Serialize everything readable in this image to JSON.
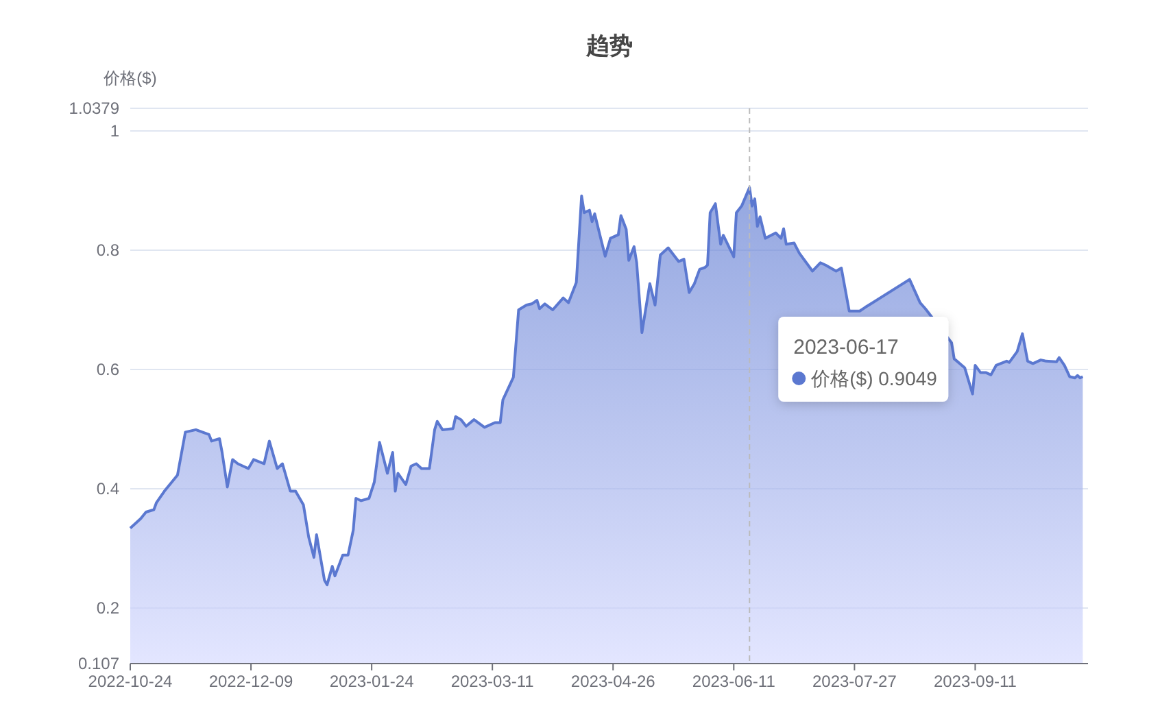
{
  "chart_data": {
    "type": "area",
    "title": "趋势",
    "ylabel": "价格($)",
    "color": "#5b78d0",
    "grid": "y",
    "xlim": [
      "2022-10-24",
      "2023-10-24"
    ],
    "ylim": [
      0.107,
      1.0379
    ],
    "xticks": [
      "2022-10-24",
      "2022-12-09",
      "2023-01-24",
      "2023-03-11",
      "2023-04-26",
      "2023-06-11",
      "2023-07-27",
      "2023-09-11"
    ],
    "yticks": [
      0.107,
      0.2,
      0.4,
      0.6,
      0.8,
      1,
      1.0379
    ],
    "ref_lines": [
      {
        "axis": "x",
        "value": "2023-06-17",
        "line_style": "dashed",
        "color": "#bbbbbb"
      }
    ],
    "annotations": [
      "2023-06-17\n价格($) 0.9049"
    ],
    "x": [
      "2022-10-24",
      "2022-10-28",
      "2022-10-30",
      "2022-11-02",
      "2022-11-03",
      "2022-11-06",
      "2022-11-11",
      "2022-11-14",
      "2022-11-18",
      "2022-11-23",
      "2022-11-24",
      "2022-11-27",
      "2022-11-28",
      "2022-11-30",
      "2022-12-02",
      "2022-12-04",
      "2022-12-08",
      "2022-12-10",
      "2022-12-14",
      "2022-12-16",
      "2022-12-19",
      "2022-12-21",
      "2022-12-24",
      "2022-12-26",
      "2022-12-29",
      "2022-12-31",
      "2023-01-02",
      "2023-01-03",
      "2023-01-06",
      "2023-01-07",
      "2023-01-09",
      "2023-01-10",
      "2023-01-13",
      "2023-01-15",
      "2023-01-17",
      "2023-01-18",
      "2023-01-20",
      "2023-01-23",
      "2023-01-25",
      "2023-01-27",
      "2023-01-30",
      "2023-02-01",
      "2023-02-02",
      "2023-02-03",
      "2023-02-06",
      "2023-02-08",
      "2023-02-10",
      "2023-02-12",
      "2023-02-15",
      "2023-02-17",
      "2023-02-18",
      "2023-02-20",
      "2023-02-24",
      "2023-02-25",
      "2023-02-27",
      "2023-03-01",
      "2023-03-04",
      "2023-03-08",
      "2023-03-12",
      "2023-03-14",
      "2023-03-15",
      "2023-03-19",
      "2023-03-21",
      "2023-03-24",
      "2023-03-26",
      "2023-03-28",
      "2023-03-29",
      "2023-03-31",
      "2023-04-03",
      "2023-04-07",
      "2023-04-09",
      "2023-04-12",
      "2023-04-14",
      "2023-04-15",
      "2023-04-17",
      "2023-04-18",
      "2023-04-19",
      "2023-04-21",
      "2023-04-23",
      "2023-04-25",
      "2023-04-28",
      "2023-04-29",
      "2023-05-01",
      "2023-05-02",
      "2023-05-04",
      "2023-05-05",
      "2023-05-07",
      "2023-05-10",
      "2023-05-12",
      "2023-05-14",
      "2023-05-17",
      "2023-05-21",
      "2023-05-23",
      "2023-05-25",
      "2023-05-27",
      "2023-05-29",
      "2023-05-31",
      "2023-06-01",
      "2023-06-02",
      "2023-06-04",
      "2023-06-06",
      "2023-06-07",
      "2023-06-11",
      "2023-06-12",
      "2023-06-14",
      "2023-06-17",
      "2023-06-18",
      "2023-06-19",
      "2023-06-20",
      "2023-06-21",
      "2023-06-23",
      "2023-06-27",
      "2023-06-29",
      "2023-06-30",
      "2023-07-01",
      "2023-07-04",
      "2023-07-06",
      "2023-07-11",
      "2023-07-14",
      "2023-07-16",
      "2023-07-20",
      "2023-07-22",
      "2023-07-25",
      "2023-07-29",
      "2023-07-31",
      "2023-08-17",
      "2023-08-21",
      "2023-08-23",
      "2023-09-02",
      "2023-09-03",
      "2023-09-07",
      "2023-09-10",
      "2023-09-11",
      "2023-09-13",
      "2023-09-15",
      "2023-09-17",
      "2023-09-19",
      "2023-09-23",
      "2023-09-24",
      "2023-09-27",
      "2023-09-29",
      "2023-10-01",
      "2023-10-03",
      "2023-10-06",
      "2023-10-08",
      "2023-10-12",
      "2023-10-13",
      "2023-10-15",
      "2023-10-17",
      "2023-10-19",
      "2023-10-20",
      "2023-10-21",
      "2023-10-22"
    ],
    "values": [
      0.334,
      0.35,
      0.361,
      0.365,
      0.377,
      0.396,
      0.423,
      0.495,
      0.499,
      0.491,
      0.48,
      0.484,
      0.461,
      0.403,
      0.449,
      0.442,
      0.434,
      0.449,
      0.442,
      0.48,
      0.434,
      0.442,
      0.396,
      0.396,
      0.373,
      0.319,
      0.285,
      0.323,
      0.247,
      0.239,
      0.27,
      0.254,
      0.289,
      0.289,
      0.331,
      0.384,
      0.38,
      0.384,
      0.411,
      0.478,
      0.426,
      0.461,
      0.396,
      0.426,
      0.407,
      0.438,
      0.442,
      0.434,
      0.434,
      0.499,
      0.513,
      0.499,
      0.501,
      0.521,
      0.516,
      0.505,
      0.516,
      0.503,
      0.511,
      0.511,
      0.549,
      0.587,
      0.7,
      0.708,
      0.71,
      0.716,
      0.702,
      0.71,
      0.7,
      0.72,
      0.712,
      0.746,
      0.891,
      0.863,
      0.867,
      0.848,
      0.861,
      0.825,
      0.79,
      0.82,
      0.826,
      0.858,
      0.835,
      0.783,
      0.806,
      0.779,
      0.662,
      0.744,
      0.708,
      0.792,
      0.804,
      0.781,
      0.785,
      0.729,
      0.744,
      0.768,
      0.771,
      0.775,
      0.863,
      0.878,
      0.81,
      0.825,
      0.789,
      0.863,
      0.874,
      0.905,
      0.874,
      0.886,
      0.84,
      0.856,
      0.82,
      0.829,
      0.82,
      0.836,
      0.81,
      0.812,
      0.795,
      0.765,
      0.779,
      0.775,
      0.765,
      0.77,
      0.698,
      0.698,
      0.704,
      0.751,
      0.712,
      0.702,
      0.645,
      0.618,
      0.603,
      0.559,
      0.607,
      0.595,
      0.595,
      0.591,
      0.607,
      0.614,
      0.612,
      0.63,
      0.66,
      0.614,
      0.61,
      0.616,
      0.614,
      0.613,
      0.62,
      0.607,
      0.588,
      0.586,
      0.59,
      0.586,
      0.588
    ]
  }
}
